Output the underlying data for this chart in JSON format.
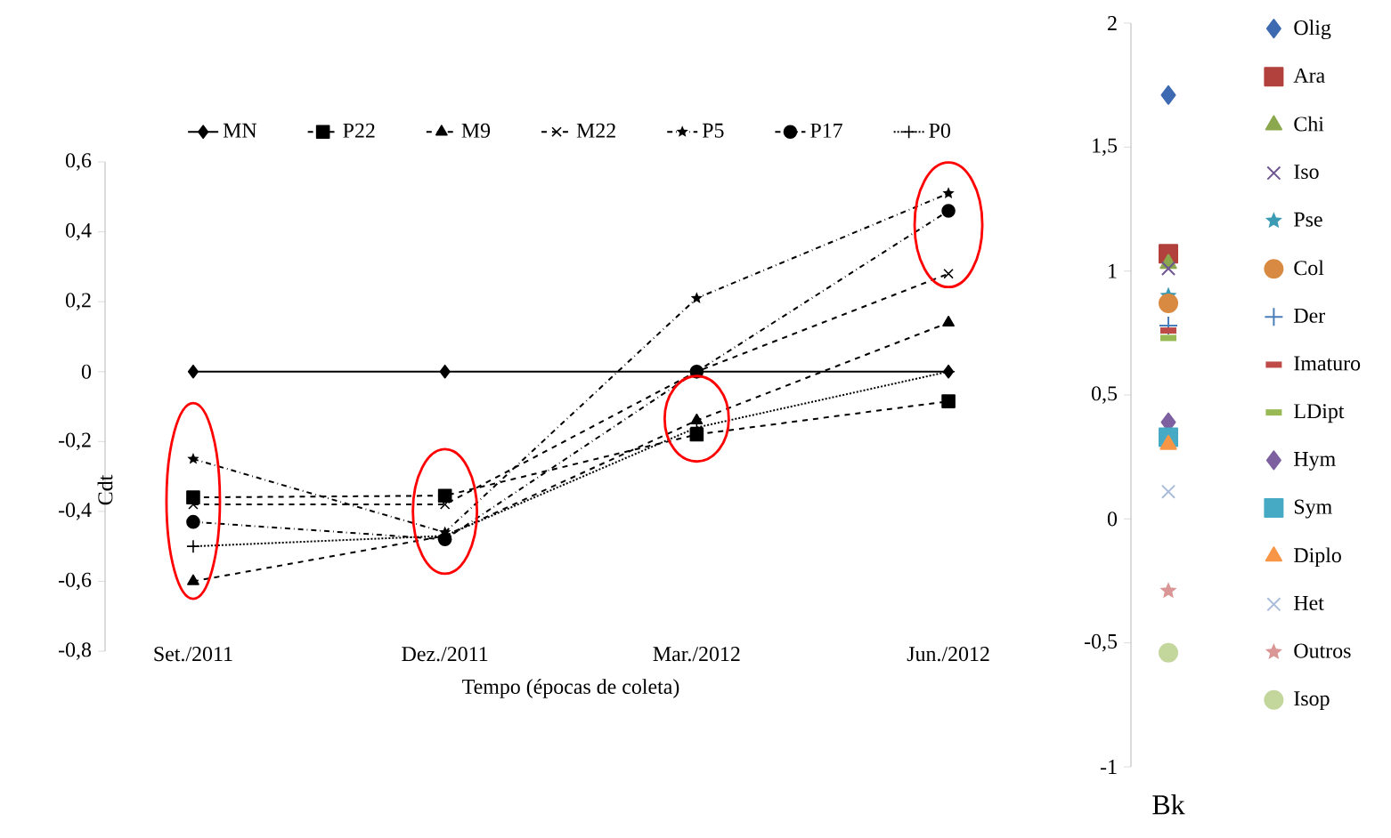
{
  "chart_data": [
    {
      "type": "line",
      "ylabel": "Cdt",
      "xlabel": "Tempo (épocas de coleta)",
      "categories": [
        "Set./2011",
        "Dez./2011",
        "Mar./2012",
        "Jun./2012"
      ],
      "ylim": [
        -0.8,
        0.6
      ],
      "yticks": [
        {
          "value": 0.6,
          "label": "0,6"
        },
        {
          "value": 0.4,
          "label": "0,4"
        },
        {
          "value": 0.2,
          "label": "0,2"
        },
        0,
        {
          "value": -0.2,
          "label": "-0,2"
        },
        {
          "value": -0.4,
          "label": "-0,4"
        },
        {
          "value": -0.6,
          "label": "-0,6"
        },
        {
          "value": -0.8,
          "label": "-0,8"
        }
      ],
      "legend": "top",
      "series": [
        {
          "name": "MN",
          "color": "#000000",
          "marker": "diamond",
          "line_style": "solid",
          "values": [
            0,
            0,
            0,
            0
          ]
        },
        {
          "name": "P22",
          "color": "#000000",
          "marker": "square",
          "line_style": "dashed",
          "values": [
            -0.36,
            -0.355,
            -0.18,
            -0.085
          ]
        },
        {
          "name": "M9",
          "color": "#000000",
          "marker": "triangle",
          "line_style": "dashed",
          "values": [
            -0.6,
            -0.47,
            -0.14,
            0.14
          ]
        },
        {
          "name": "M22",
          "color": "#000000",
          "marker": "cross",
          "line_style": "dashed",
          "values": [
            -0.38,
            -0.38,
            0.0,
            0.28
          ]
        },
        {
          "name": "P5",
          "color": "#000000",
          "marker": "star",
          "line_style": "dashdot",
          "values": [
            -0.25,
            -0.46,
            0.21,
            0.51
          ]
        },
        {
          "name": "P17",
          "color": "#000000",
          "marker": "circle",
          "line_style": "dashdot",
          "values": [
            -0.43,
            -0.48,
            0.0,
            0.46
          ]
        },
        {
          "name": "P0",
          "color": "#000000",
          "marker": "plus",
          "line_style": "dotted",
          "values": [
            -0.5,
            -0.47,
            -0.16,
            0.0
          ]
        }
      ]
    },
    {
      "type": "scatter",
      "categories": [
        "Bk"
      ],
      "ylim": [
        -1,
        2
      ],
      "yticks": [
        {
          "value": -1,
          "label": "-1"
        },
        {
          "value": -0.5,
          "label": "-0,5"
        },
        {
          "value": 0,
          "label": "0"
        },
        {
          "value": 0.5,
          "label": "0,5"
        },
        {
          "value": 1,
          "label": "1"
        },
        {
          "value": 1.5,
          "label": "1,5"
        },
        {
          "value": 2,
          "label": "2"
        }
      ],
      "legend": "right",
      "series": [
        {
          "name": "Olig",
          "color": "#3e6ab1",
          "marker": "diamond",
          "values": [
            1.71
          ]
        },
        {
          "name": "Ara",
          "color": "#b2403c",
          "marker": "square",
          "values": [
            1.07
          ]
        },
        {
          "name": "Chi",
          "color": "#8ba84e",
          "marker": "triangle",
          "values": [
            1.03
          ]
        },
        {
          "name": "Iso",
          "color": "#6f5591",
          "marker": "cross",
          "values": [
            1.01
          ]
        },
        {
          "name": "Pse",
          "color": "#3b9bb4",
          "marker": "star",
          "values": [
            0.9
          ]
        },
        {
          "name": "Col",
          "color": "#d98a42",
          "marker": "circle",
          "values": [
            0.87
          ]
        },
        {
          "name": "Der",
          "color": "#4a7ebb",
          "marker": "plus",
          "values": [
            0.78
          ]
        },
        {
          "name": "Imaturo",
          "color": "#be4b48",
          "values": [
            0.76
          ]
        },
        {
          "name": "LDipt",
          "color": "#98b954",
          "values": [
            0.73
          ]
        },
        {
          "name": "Hym",
          "color": "#7d60a0",
          "marker": "diamond",
          "values": [
            0.39
          ]
        },
        {
          "name": "Sym",
          "color": "#46aac5",
          "marker": "square",
          "values": [
            0.33
          ]
        },
        {
          "name": "Diplo",
          "color": "#f79646",
          "marker": "triangle",
          "values": [
            0.3
          ]
        },
        {
          "name": "Het",
          "color": "#a9bcdc",
          "marker": "cross",
          "values": [
            0.11
          ]
        },
        {
          "name": "Outros",
          "color": "#d99694",
          "marker": "star",
          "values": [
            -0.29
          ]
        },
        {
          "name": "Isop",
          "color": "#c3d69b",
          "marker": "circle",
          "values": [
            -0.54
          ]
        }
      ]
    }
  ]
}
